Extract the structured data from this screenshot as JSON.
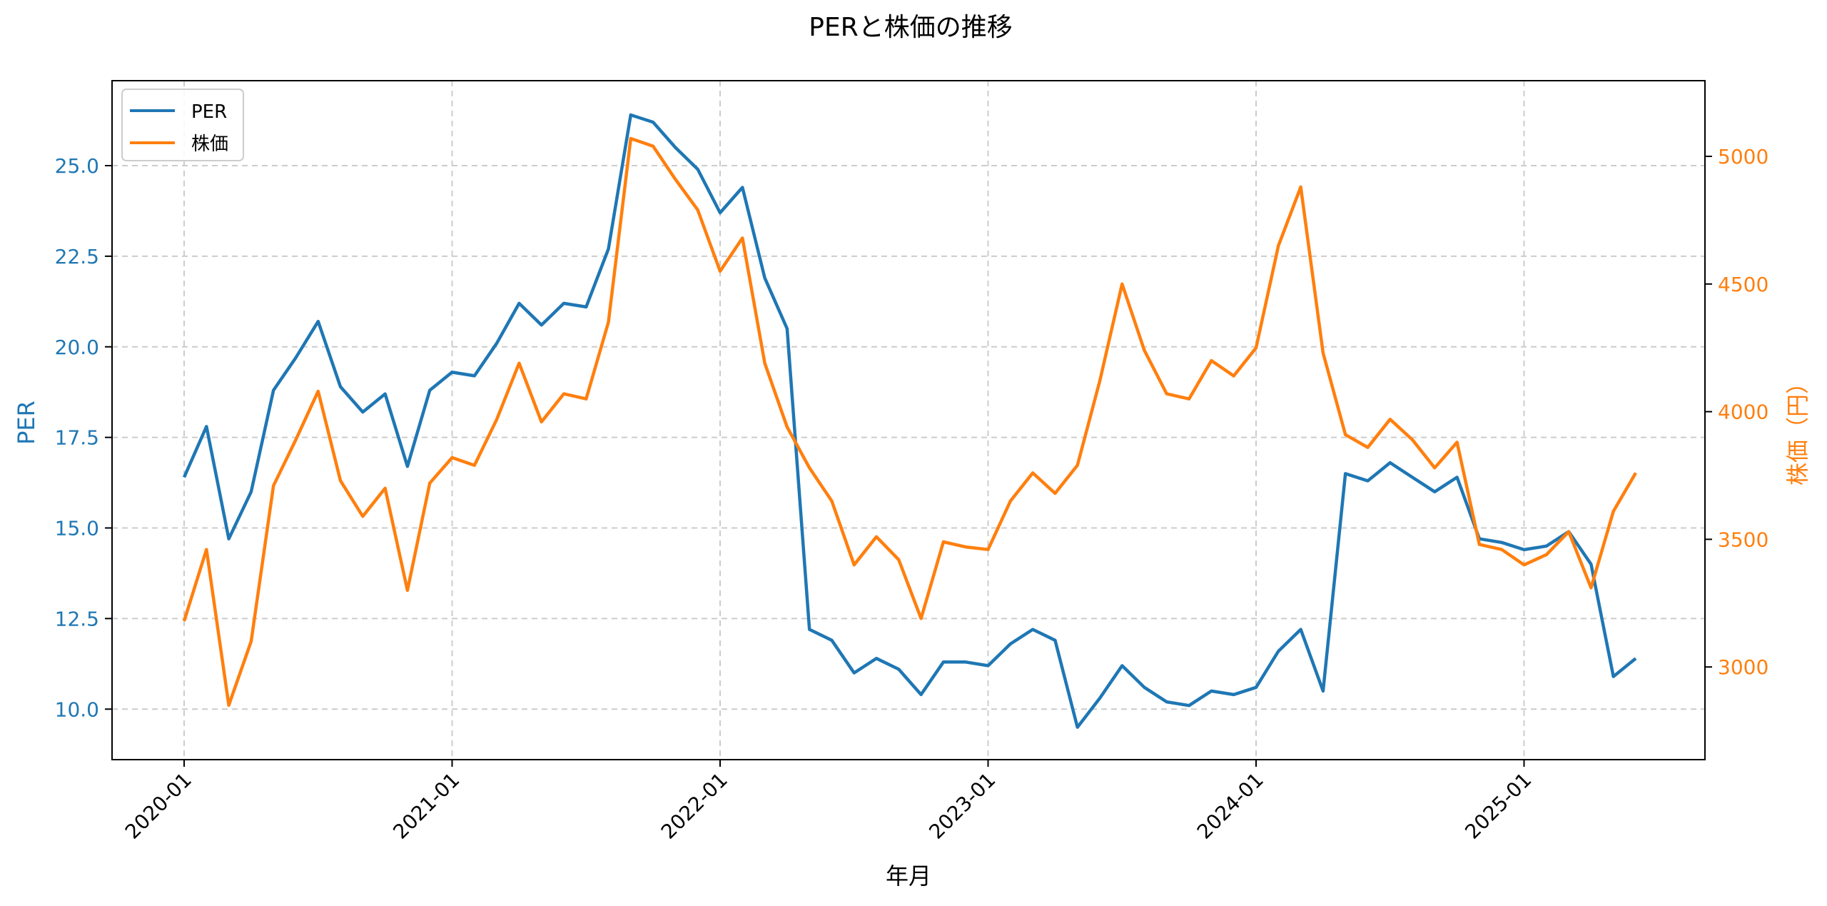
{
  "chart_data": {
    "type": "line",
    "title": "PERと株価の推移",
    "xlabel": "年月",
    "ylabel": "PER",
    "ylabel_right": "株価（円）",
    "x_tick_labels": [
      "2020-01",
      "2021-01",
      "2022-01",
      "2023-01",
      "2024-01",
      "2025-01"
    ],
    "y_ticks_left": [
      "10.0",
      "12.5",
      "15.0",
      "17.5",
      "20.0",
      "22.5",
      "25.0"
    ],
    "y_ticks_right": [
      "3000",
      "3500",
      "4000",
      "4500",
      "5000"
    ],
    "ylim_left": [
      8.6,
      27.4
    ],
    "ylim_right": [
      2640,
      5290
    ],
    "grid": true,
    "legend_position": "upper left",
    "x": [
      "2020-01",
      "2020-02",
      "2020-03",
      "2020-04",
      "2020-05",
      "2020-06",
      "2020-07",
      "2020-08",
      "2020-09",
      "2020-10",
      "2020-11",
      "2020-12",
      "2021-01",
      "2021-02",
      "2021-03",
      "2021-04",
      "2021-05",
      "2021-06",
      "2021-07",
      "2021-08",
      "2021-09",
      "2021-10",
      "2021-11",
      "2021-12",
      "2022-01",
      "2022-02",
      "2022-03",
      "2022-04",
      "2022-05",
      "2022-06",
      "2022-07",
      "2022-08",
      "2022-09",
      "2022-10",
      "2022-11",
      "2022-12",
      "2023-01",
      "2023-02",
      "2023-03",
      "2023-04",
      "2023-05",
      "2023-06",
      "2023-07",
      "2023-08",
      "2023-09",
      "2023-10",
      "2023-11",
      "2023-12",
      "2024-01",
      "2024-02",
      "2024-03",
      "2024-04",
      "2024-05",
      "2024-06",
      "2024-07",
      "2024-08",
      "2024-09",
      "2024-10",
      "2024-11",
      "2024-12",
      "2025-01",
      "2025-02",
      "2025-03",
      "2025-04",
      "2025-05",
      "2025-06"
    ],
    "series": [
      {
        "name": "PER",
        "axis": "left",
        "color": "#1f77b4",
        "values": [
          16.4,
          17.8,
          14.7,
          16.0,
          18.8,
          19.7,
          20.7,
          18.9,
          18.2,
          18.7,
          16.7,
          18.8,
          19.3,
          19.2,
          20.1,
          21.2,
          20.6,
          21.2,
          21.1,
          22.7,
          26.4,
          26.2,
          25.5,
          24.9,
          23.7,
          24.4,
          21.9,
          20.5,
          12.2,
          11.9,
          11.0,
          11.4,
          11.1,
          10.4,
          11.3,
          11.3,
          11.2,
          11.8,
          12.2,
          11.9,
          9.5,
          10.3,
          11.2,
          10.6,
          10.2,
          10.1,
          10.5,
          10.4,
          10.6,
          11.6,
          12.2,
          10.5,
          16.5,
          16.3,
          16.8,
          16.4,
          16.0,
          16.4,
          14.7,
          14.6,
          14.4,
          14.5,
          14.9,
          14.0,
          10.9,
          11.4
        ]
      },
      {
        "name": "株価",
        "axis": "right",
        "color": "#ff7f0e",
        "values": [
          3180,
          3460,
          2850,
          3100,
          3710,
          3890,
          4080,
          3730,
          3590,
          3700,
          3300,
          3720,
          3820,
          3790,
          3970,
          4190,
          3960,
          4070,
          4050,
          4350,
          5070,
          5040,
          4910,
          4790,
          4550,
          4680,
          4190,
          3940,
          3780,
          3650,
          3400,
          3510,
          3420,
          3190,
          3490,
          3470,
          3460,
          3650,
          3760,
          3680,
          3790,
          4120,
          4500,
          4240,
          4070,
          4050,
          4200,
          4140,
          4250,
          4650,
          4880,
          4230,
          3910,
          3860,
          3970,
          3890,
          3780,
          3880,
          3480,
          3460,
          3400,
          3440,
          3530,
          3310,
          3610,
          3760
        ]
      }
    ]
  },
  "legend": {
    "items": [
      {
        "label": "PER",
        "color": "#1f77b4"
      },
      {
        "label": "株価",
        "color": "#ff7f0e"
      }
    ]
  }
}
